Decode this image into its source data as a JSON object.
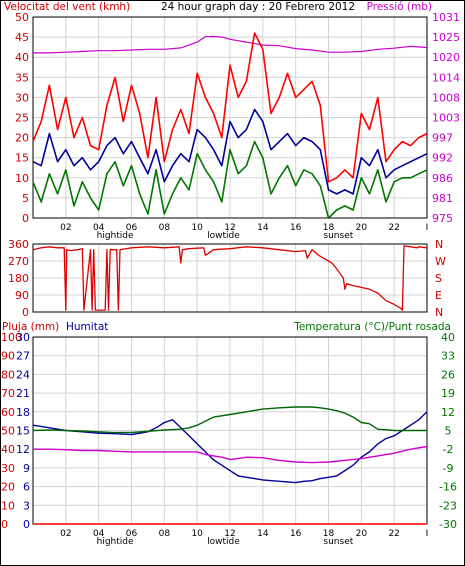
{
  "chart_data": [
    {
      "type": "line",
      "title": "24 hour graph day : 20 Febrero 2012",
      "left_axis_label": "Velocitat del vent (kmh)",
      "right_axis_label": "Pressió (mb)",
      "ylim": [
        0,
        50
      ],
      "y_ticks": [
        "0",
        "5",
        "10",
        "15",
        "20",
        "25",
        "30",
        "35",
        "40",
        "45",
        "50"
      ],
      "y2lim": [
        975,
        1031
      ],
      "y2_ticks": [
        "975",
        "981",
        "986",
        "992",
        "997",
        "1003",
        "1008",
        "1014",
        "1020",
        "1025",
        "1031"
      ],
      "x_ticks": [
        "02",
        "04",
        "06",
        "08",
        "10",
        "12",
        "14",
        "16",
        "18",
        "20",
        "22",
        "I"
      ],
      "x_annotations": [
        "hightide",
        "lowtide",
        "sunset"
      ],
      "x_range_hours": [
        0,
        24
      ],
      "grid": true,
      "series": [
        {
          "axis": "right",
          "color": "#cc00cc",
          "x": [
            0,
            1,
            2,
            3,
            4,
            5,
            6,
            7,
            8,
            9,
            10,
            10.5,
            11,
            11.5,
            12,
            13,
            14,
            15,
            16,
            17,
            18,
            19,
            20,
            21,
            22,
            23,
            24
          ],
          "values": [
            1021,
            1021,
            1021.2,
            1021.4,
            1021.6,
            1021.6,
            1021.8,
            1022,
            1022,
            1022.4,
            1024,
            1025.5,
            1025.6,
            1025.4,
            1024.8,
            1024,
            1023.2,
            1023,
            1022.2,
            1021.8,
            1021.2,
            1021.2,
            1021.4,
            1022,
            1022.3,
            1022.8,
            1022.5
          ]
        },
        {
          "axis": "left",
          "color": "#ff0000",
          "x": [
            0,
            0.5,
            1,
            1.5,
            2,
            2.5,
            3,
            3.5,
            4,
            4.5,
            5,
            5.5,
            6,
            6.5,
            7,
            7.5,
            8,
            8.5,
            9,
            9.5,
            10,
            10.5,
            11,
            11.5,
            12,
            12.5,
            13,
            13.5,
            14,
            14.5,
            15,
            15.5,
            16,
            16.5,
            17,
            17.5,
            18,
            18.5,
            19,
            19.5,
            20,
            20.5,
            21,
            21.5,
            22,
            22.5,
            23,
            23.5,
            24
          ],
          "values": [
            19,
            24,
            33,
            22,
            30,
            20,
            25,
            18,
            17,
            28,
            35,
            24,
            33,
            26,
            15,
            30,
            14,
            22,
            27,
            21,
            36,
            30,
            26,
            20,
            38,
            30,
            34,
            46,
            42,
            26,
            30,
            36,
            30,
            32,
            34,
            28,
            9,
            10,
            12,
            10,
            26,
            22,
            30,
            14,
            17,
            19,
            18,
            20,
            21
          ]
        },
        {
          "axis": "left",
          "color": "#000099",
          "x": [
            0,
            0.5,
            1,
            1.5,
            2,
            2.5,
            3,
            3.5,
            4,
            4.5,
            5,
            5.5,
            6,
            6.5,
            7,
            7.5,
            8,
            8.5,
            9,
            9.5,
            10,
            10.5,
            11,
            11.5,
            12,
            12.5,
            13,
            13.5,
            14,
            14.5,
            15,
            15.5,
            16,
            16.5,
            17,
            17.5,
            18,
            18.5,
            19,
            19.5,
            20,
            20.5,
            21,
            21.5,
            22,
            22.5,
            23,
            23.5,
            24
          ],
          "values": [
            14,
            13,
            21,
            14,
            17,
            13,
            15,
            12,
            14,
            18,
            20,
            16,
            19,
            15,
            11,
            17,
            9,
            13,
            16,
            14,
            22,
            20,
            17,
            13,
            24,
            20,
            22,
            27,
            24,
            17,
            19,
            21,
            18,
            20,
            19,
            17,
            7,
            6,
            7,
            6,
            15,
            13,
            17,
            10,
            12,
            13,
            14,
            15,
            16
          ]
        },
        {
          "axis": "left",
          "color": "#007700",
          "x": [
            0,
            0.5,
            1,
            1.5,
            2,
            2.5,
            3,
            3.5,
            4,
            4.5,
            5,
            5.5,
            6,
            6.5,
            7,
            7.5,
            8,
            8.5,
            9,
            9.5,
            10,
            10.5,
            11,
            11.5,
            12,
            12.5,
            13,
            13.5,
            14,
            14.5,
            15,
            15.5,
            16,
            16.5,
            17,
            17.5,
            18,
            18.5,
            19,
            19.5,
            20,
            20.5,
            21,
            21.5,
            22,
            22.5,
            23,
            23.5,
            24
          ],
          "values": [
            9,
            4,
            11,
            6,
            12,
            3,
            9,
            5,
            2,
            11,
            14,
            8,
            13,
            6,
            1,
            12,
            1,
            6,
            10,
            7,
            16,
            12,
            9,
            4,
            17,
            11,
            13,
            19,
            15,
            6,
            10,
            13,
            8,
            12,
            11,
            8,
            0,
            2,
            3,
            2,
            10,
            6,
            12,
            4,
            9,
            10,
            10,
            11,
            12
          ]
        }
      ]
    },
    {
      "type": "line",
      "right_axis_labels": [
        "N",
        "W",
        "S",
        "E",
        "N"
      ],
      "y_ticks": [
        "0",
        "90",
        "180",
        "270",
        "360"
      ],
      "ylim": [
        0,
        360
      ],
      "x_range_hours": [
        0,
        24
      ],
      "grid": true,
      "series": [
        {
          "color": "#dd0000",
          "x": [
            0,
            0.5,
            1,
            1.5,
            1.9,
            2,
            2.05,
            2.3,
            2.7,
            3,
            3.1,
            3.5,
            3.6,
            3.7,
            3.8,
            4.4,
            4.5,
            4.6,
            4.7,
            5.1,
            5.2,
            5.3,
            6,
            7,
            8,
            8.9,
            9,
            9.1,
            9.5,
            10.4,
            10.5,
            11,
            12,
            13,
            14,
            15,
            16,
            16.6,
            16.7,
            17,
            17.4,
            18,
            18.2,
            18.4,
            18.9,
            19,
            19.1,
            19.5,
            20,
            20.5,
            21,
            21.5,
            22,
            22.4,
            22.5,
            22.6,
            23,
            23.4,
            23.5,
            24
          ],
          "values": [
            330,
            340,
            345,
            340,
            340,
            10,
            330,
            325,
            330,
            335,
            10,
            330,
            10,
            330,
            10,
            10,
            330,
            10,
            330,
            330,
            10,
            330,
            340,
            345,
            340,
            345,
            260,
            330,
            335,
            340,
            300,
            330,
            335,
            345,
            340,
            330,
            320,
            325,
            285,
            330,
            300,
            270,
            260,
            240,
            180,
            120,
            150,
            140,
            130,
            120,
            100,
            60,
            40,
            20,
            10,
            350,
            345,
            340,
            345,
            340
          ]
        }
      ]
    },
    {
      "type": "line",
      "left_axis_label_1": "Pluja (mm)",
      "left_axis_label_2": "Humitat",
      "right_axis_label": "Temperatura (°C)/Punt rosada",
      "rain_ticks": [
        "0",
        "10",
        "20",
        "30",
        "40",
        "50",
        "60",
        "70",
        "80",
        "90",
        "100"
      ],
      "humidity_ticks": [
        "0",
        "3",
        "6",
        "9",
        "12",
        "15",
        "18",
        "21",
        "24",
        "27",
        "30"
      ],
      "right_ticks": [
        "-30",
        "-23",
        "-16",
        "-9",
        "-2",
        "5",
        "12",
        "19",
        "26",
        "33",
        "40"
      ],
      "y_right_lim": [
        -30,
        40
      ],
      "x_ticks": [
        "02",
        "04",
        "06",
        "08",
        "10",
        "12",
        "14",
        "16",
        "18",
        "20",
        "22",
        "I"
      ],
      "x_annotations": [
        "hightide",
        "lowtide",
        "sunset"
      ],
      "x_range_hours": [
        0,
        24
      ],
      "grid": true,
      "series": [
        {
          "axis": "right",
          "color": "#000099",
          "x": [
            0,
            1,
            2,
            3,
            4,
            5,
            6,
            6.5,
            7,
            7.5,
            8,
            8.5,
            9,
            9.5,
            10,
            10.5,
            11,
            11.5,
            12,
            12.5,
            13,
            13.5,
            14,
            15,
            16,
            16.5,
            17,
            17.5,
            18,
            18.5,
            19,
            19.5,
            20,
            20.5,
            21,
            21.5,
            22,
            22.5,
            23,
            23.5,
            24
          ],
          "values": [
            7,
            6,
            5,
            4.5,
            4,
            3.8,
            3.5,
            4,
            4.5,
            6,
            8,
            9,
            6,
            3,
            0,
            -3,
            -6,
            -8,
            -10,
            -12,
            -12.5,
            -13,
            -13.5,
            -14,
            -14.5,
            -14,
            -13.8,
            -13,
            -12.5,
            -12,
            -10,
            -8,
            -5,
            -3,
            0,
            2,
            3,
            5,
            7,
            9,
            12
          ]
        },
        {
          "axis": "right",
          "color": "#006600",
          "x": [
            0,
            1,
            2,
            3,
            4,
            5,
            6,
            7,
            8,
            9,
            9.5,
            10,
            10.5,
            11,
            12,
            13,
            14,
            15,
            16,
            17,
            17.5,
            18,
            18.5,
            19,
            19.5,
            20,
            20.5,
            21,
            22,
            23,
            24
          ],
          "values": [
            5,
            5.2,
            5,
            4.8,
            4.5,
            4.2,
            4.3,
            4.7,
            5.2,
            5.5,
            6,
            7,
            8.5,
            10,
            11,
            12,
            13,
            13.5,
            13.8,
            13.8,
            13.5,
            13,
            12.4,
            11.5,
            10,
            8,
            7.5,
            5.5,
            5,
            5,
            5
          ]
        },
        {
          "axis": "right",
          "color": "#cc00cc",
          "x": [
            0,
            1,
            2,
            3,
            4,
            5,
            6,
            7,
            8,
            9,
            10,
            10.5,
            11,
            11.5,
            12,
            12.5,
            13,
            14,
            15,
            16,
            17,
            18,
            19,
            20,
            21,
            22,
            23,
            24
          ],
          "values": [
            -2,
            -2,
            -2.2,
            -2.5,
            -2.5,
            -2.8,
            -3,
            -3,
            -3,
            -3,
            -3,
            -4,
            -4.5,
            -5,
            -5.8,
            -5.5,
            -5,
            -5.2,
            -6.2,
            -6.8,
            -7,
            -6.8,
            -6.2,
            -5.5,
            -4.5,
            -3.5,
            -2,
            -1
          ]
        },
        {
          "axis": "rain",
          "color": "#ff0000",
          "x": [
            0,
            24
          ],
          "values": [
            0,
            0
          ]
        }
      ]
    }
  ]
}
